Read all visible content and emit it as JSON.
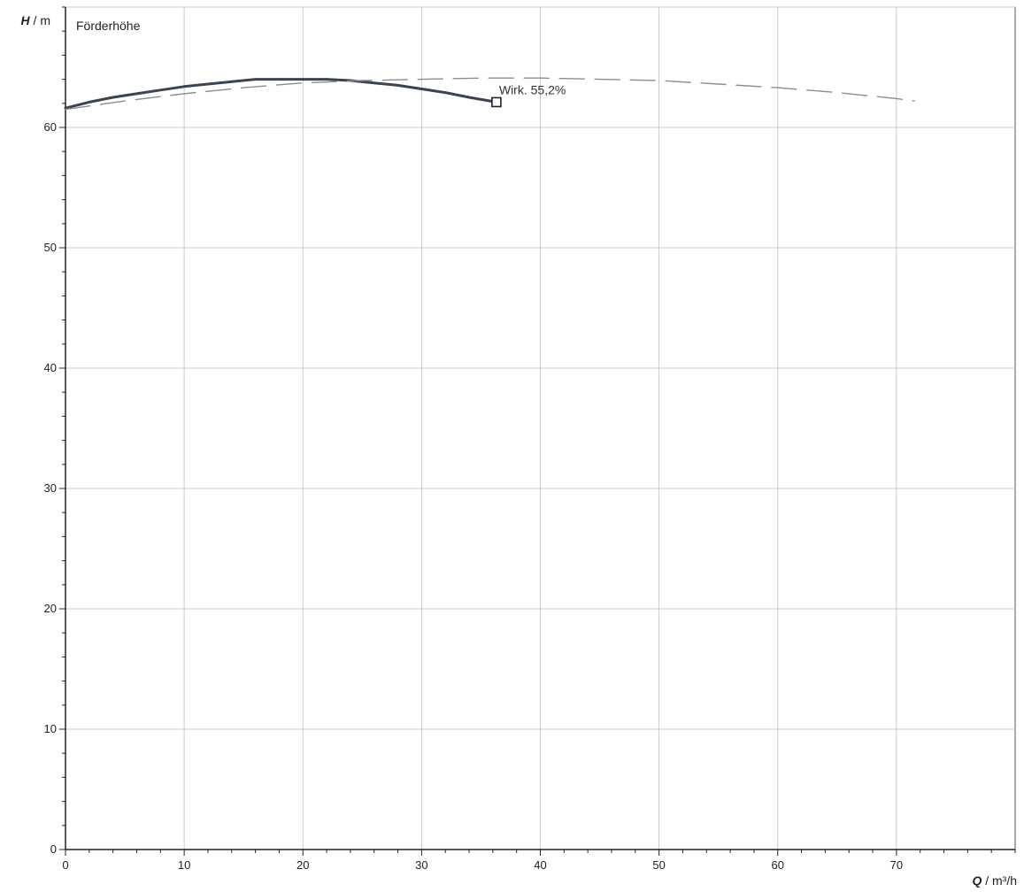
{
  "chart_data": {
    "type": "line",
    "title": "",
    "panel_label": "Förderhöhe",
    "ylabel": {
      "symbol": "H",
      "unit": " / m"
    },
    "xlabel": {
      "symbol": "Q",
      "unit": " / m³/h"
    },
    "xlim": [
      0,
      80
    ],
    "ylim": [
      0,
      70
    ],
    "x_ticks": [
      0,
      10,
      20,
      30,
      40,
      50,
      60,
      70
    ],
    "y_ticks": [
      0,
      10,
      20,
      30,
      40,
      50,
      60
    ],
    "x_minor_step": 2,
    "y_minor_step": 2,
    "grid": true,
    "series": [
      {
        "style": "solid",
        "color": "#3a4450",
        "x": [
          0,
          2,
          4,
          6,
          8,
          10,
          12,
          14,
          16,
          18,
          20,
          22,
          24,
          26,
          28,
          30,
          32,
          34,
          36.3
        ],
        "y": [
          61.6,
          62.1,
          62.5,
          62.8,
          63.1,
          63.4,
          63.6,
          63.8,
          64.0,
          64.0,
          64.0,
          64.0,
          63.9,
          63.7,
          63.5,
          63.2,
          62.9,
          62.5,
          62.1
        ]
      },
      {
        "style": "dashed",
        "color": "#8c8c8c",
        "x": [
          0,
          5,
          10,
          15,
          20,
          25,
          30,
          35,
          40,
          45,
          50,
          55,
          60,
          65,
          70,
          71.5
        ],
        "y": [
          61.5,
          62.2,
          62.8,
          63.3,
          63.7,
          63.9,
          64.0,
          64.1,
          64.1,
          64.0,
          63.9,
          63.6,
          63.3,
          62.9,
          62.4,
          62.2
        ]
      }
    ],
    "annotations": [
      {
        "x": 36.3,
        "y": 62.1,
        "marker": "square",
        "text": "Wirk.  55,2%"
      }
    ]
  }
}
